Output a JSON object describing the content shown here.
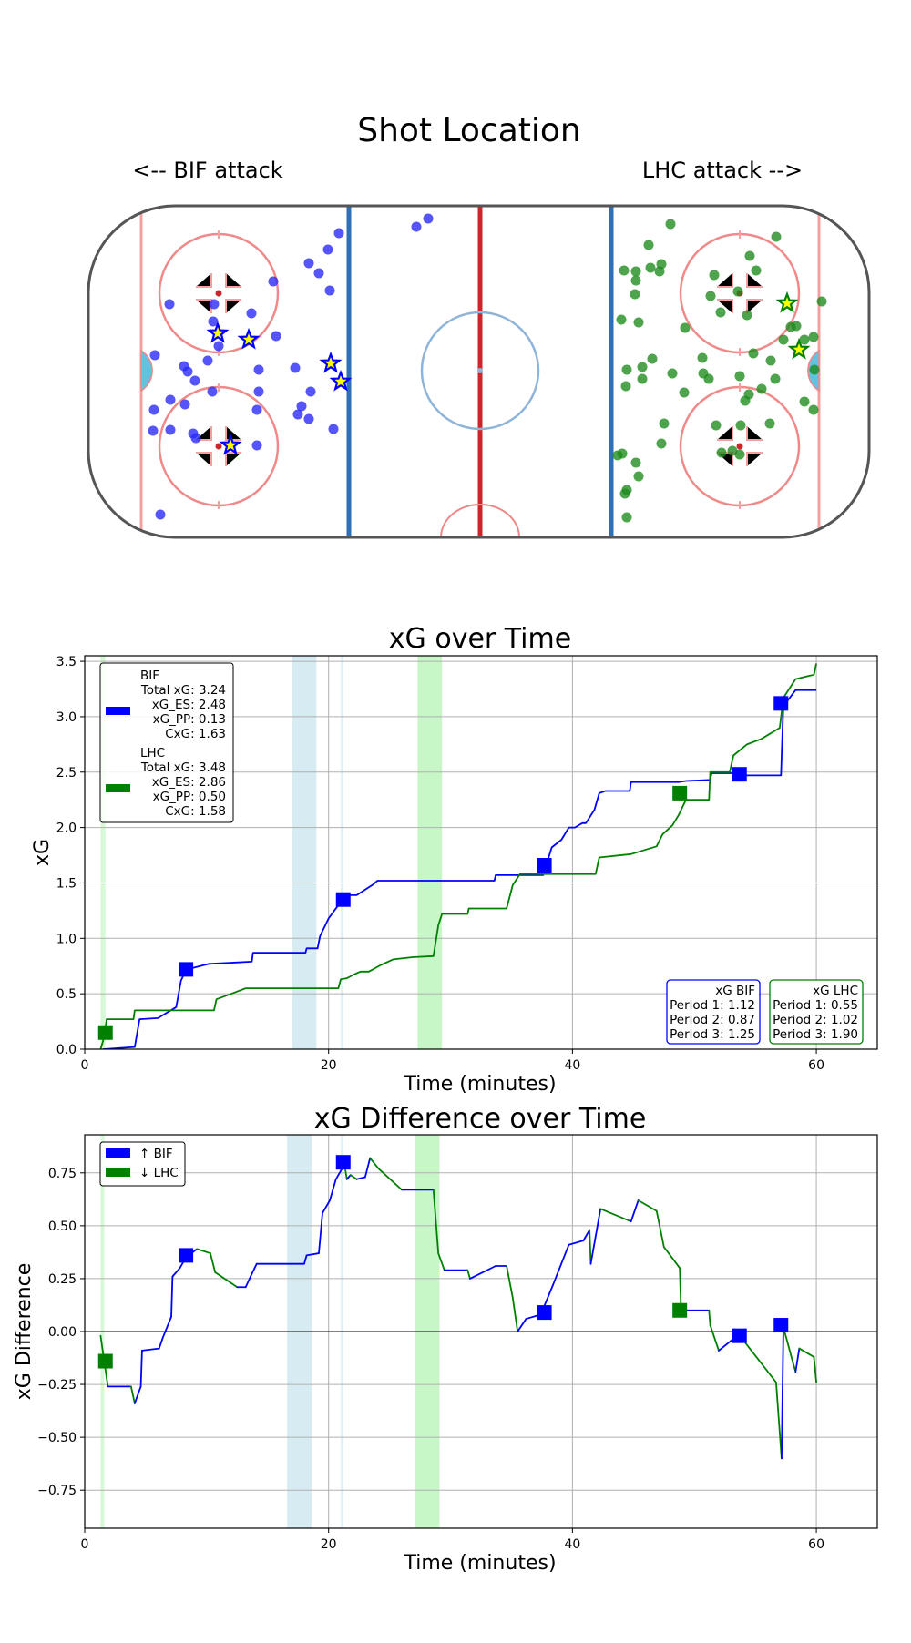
{
  "rink": {
    "title": "Shot Location",
    "left_label": "<-- BIF attack",
    "right_label": "LHC attack -->",
    "bif_color": "#0000ff",
    "lhc_color": "#008000",
    "goal_marker_fill": "#ffff00"
  },
  "chart_data": [
    {
      "type": "line",
      "title": "xG over Time",
      "xlabel": "Time (minutes)",
      "ylabel": "xG",
      "xlim": [
        0,
        65
      ],
      "ylim": [
        0,
        3.55
      ],
      "xticks": [
        0,
        20,
        40,
        60
      ],
      "yticks": [
        0.0,
        0.5,
        1.0,
        1.5,
        2.0,
        2.5,
        3.0,
        3.5
      ],
      "ytick_labels": [
        "0.0",
        "0.5",
        "1.0",
        "1.5",
        "2.0",
        "2.5",
        "3.0",
        "3.5"
      ],
      "grid": true,
      "series": [
        {
          "name": "BIF",
          "color": "#0000ff",
          "x": [
            1.5,
            4.1,
            4.5,
            6.0,
            7.5,
            7.9,
            8.2,
            8.4,
            10.2,
            13.7,
            13.8,
            18.1,
            18.2,
            19.1,
            19.3,
            20.0,
            20.8,
            21.2,
            22.3,
            23.7,
            24.0,
            33.6,
            33.7,
            37.6,
            38.3,
            39.1,
            39.7,
            40.2,
            40.8,
            41.1,
            41.8,
            42.2,
            42.7,
            44.7,
            44.8,
            48.7,
            49.3,
            51.3,
            51.4,
            53.7,
            53.9,
            57.1,
            57.3,
            57.6,
            58.3,
            60.0
          ],
          "y": [
            0.0,
            0.02,
            0.27,
            0.28,
            0.38,
            0.62,
            0.69,
            0.72,
            0.77,
            0.79,
            0.87,
            0.87,
            0.91,
            0.91,
            1.02,
            1.18,
            1.3,
            1.39,
            1.39,
            1.49,
            1.52,
            1.52,
            1.57,
            1.57,
            1.82,
            1.89,
            2.0,
            2.0,
            2.04,
            2.04,
            2.16,
            2.31,
            2.33,
            2.33,
            2.41,
            2.41,
            2.42,
            2.43,
            2.49,
            2.49,
            2.47,
            2.47,
            3.11,
            3.14,
            3.24,
            3.24
          ]
        },
        {
          "name": "LHC",
          "color": "#008000",
          "x": [
            1.3,
            1.6,
            1.8,
            4.0,
            4.1,
            10.6,
            10.8,
            12.5,
            13.2,
            20.8,
            21.0,
            21.5,
            22.0,
            22.6,
            23.3,
            24.3,
            25.3,
            26.9,
            28.6,
            29.0,
            29.3,
            31.4,
            31.5,
            34.6,
            35.1,
            35.7,
            41.9,
            42.2,
            44.8,
            46.9,
            47.4,
            48.2,
            48.7,
            49.3,
            51.2,
            51.3,
            52.9,
            53.2,
            54.3,
            55.5,
            57.0,
            57.3,
            58.3,
            59.8,
            60.0
          ],
          "y": [
            0.0,
            0.11,
            0.27,
            0.27,
            0.35,
            0.35,
            0.45,
            0.52,
            0.55,
            0.55,
            0.63,
            0.64,
            0.67,
            0.7,
            0.7,
            0.76,
            0.81,
            0.83,
            0.84,
            1.12,
            1.22,
            1.22,
            1.27,
            1.27,
            1.48,
            1.58,
            1.58,
            1.73,
            1.76,
            1.83,
            1.94,
            2.02,
            2.11,
            2.25,
            2.25,
            2.5,
            2.5,
            2.65,
            2.75,
            2.8,
            2.9,
            3.17,
            3.34,
            3.38,
            3.48
          ]
        }
      ],
      "goal_markers": [
        {
          "team": "LHC",
          "x": 1.7,
          "y": 0.15
        },
        {
          "team": "BIF",
          "x": 8.3,
          "y": 0.72
        },
        {
          "team": "BIF",
          "x": 21.2,
          "y": 1.35
        },
        {
          "team": "BIF",
          "x": 37.7,
          "y": 1.66
        },
        {
          "team": "LHC",
          "x": 48.8,
          "y": 2.31
        },
        {
          "team": "BIF",
          "x": 53.7,
          "y": 2.48
        },
        {
          "team": "BIF",
          "x": 57.1,
          "y": 3.12
        }
      ],
      "penalty_bands": [
        {
          "team": "LHC",
          "x0": 1.3,
          "x1": 1.7
        },
        {
          "team": "BIF",
          "x0": 17.0,
          "x1": 19.0
        },
        {
          "team": "BIF",
          "x0": 21.0,
          "x1": 21.2
        },
        {
          "team": "LHC",
          "x0": 27.3,
          "x1": 29.3
        }
      ],
      "legend": {
        "position": "upper-left",
        "entries": [
          {
            "team": "BIF",
            "color": "#0000ff",
            "lines": [
              "BIF",
              "Total xG: 3.24",
              "xG_ES: 2.48",
              "xG_PP: 0.13",
              "CxG: 1.63"
            ]
          },
          {
            "team": "LHC",
            "color": "#008000",
            "lines": [
              "LHC",
              "Total xG: 3.48",
              "xG_ES: 2.86",
              "xG_PP: 0.50",
              "CxG: 1.58"
            ]
          }
        ]
      },
      "period_boxes": [
        {
          "team": "BIF",
          "color": "#0000ff",
          "lines": [
            "xG BIF",
            "Period 1: 1.12",
            "Period 2: 0.87",
            "Period 3: 1.25"
          ]
        },
        {
          "team": "LHC",
          "color": "#008000",
          "lines": [
            "xG LHC",
            "Period 1: 0.55",
            "Period 2: 1.02",
            "Period 3: 1.90"
          ]
        }
      ]
    },
    {
      "type": "line",
      "title": "xG Difference over Time",
      "xlabel": "Time (minutes)",
      "ylabel": "xG Difference",
      "xlim": [
        0,
        65
      ],
      "ylim": [
        -0.93,
        0.93
      ],
      "xticks": [
        0,
        20,
        40,
        60
      ],
      "yticks": [
        -0.75,
        -0.5,
        -0.25,
        0.0,
        0.25,
        0.5,
        0.75
      ],
      "ytick_labels": [
        "−0.75",
        "−0.50",
        "−0.25",
        "0.00",
        "0.25",
        "0.50",
        "0.75"
      ],
      "grid": true,
      "zero_line": true,
      "positive_color": "#0000ff",
      "negative_color": "#008000",
      "series": [
        {
          "name": "xG difference",
          "x": [
            1.3,
            1.5,
            1.9,
            2.5,
            3.5,
            3.8,
            4.1,
            4.6,
            4.7,
            6.1,
            6.4,
            7.1,
            7.2,
            7.8,
            8.3,
            9.2,
            10.3,
            10.7,
            12.5,
            13.2,
            13.6,
            14.1,
            18.0,
            18.2,
            19.2,
            19.5,
            20.1,
            20.6,
            21.3,
            21.5,
            21.8,
            22.3,
            23.0,
            23.4,
            24.1,
            26.0,
            27.3,
            28.6,
            29.0,
            29.5,
            31.4,
            31.6,
            33.7,
            34.6,
            35.1,
            35.5,
            36.2,
            37.4,
            38.4,
            39.7,
            40.9,
            41.4,
            41.5,
            42.3,
            44.8,
            45.4,
            46.9,
            47.5,
            48.8,
            48.9,
            51.2,
            51.3,
            52.0,
            53.3,
            53.8,
            54.0,
            56.7,
            57.0,
            57.15,
            57.3,
            58.1,
            58.3,
            58.6,
            59.8,
            60.0
          ],
          "y": [
            -0.02,
            -0.1,
            -0.26,
            -0.26,
            -0.26,
            -0.26,
            -0.34,
            -0.26,
            -0.09,
            -0.08,
            -0.03,
            0.07,
            0.26,
            0.3,
            0.35,
            0.39,
            0.37,
            0.28,
            0.21,
            0.21,
            0.26,
            0.32,
            0.32,
            0.36,
            0.37,
            0.56,
            0.62,
            0.72,
            0.79,
            0.72,
            0.74,
            0.72,
            0.73,
            0.82,
            0.77,
            0.67,
            0.67,
            0.67,
            0.37,
            0.29,
            0.29,
            0.25,
            0.31,
            0.31,
            0.16,
            0.0,
            0.06,
            0.08,
            0.22,
            0.41,
            0.43,
            0.48,
            0.32,
            0.58,
            0.52,
            0.62,
            0.57,
            0.4,
            0.3,
            0.1,
            0.1,
            0.03,
            -0.09,
            -0.03,
            -0.02,
            -0.04,
            -0.24,
            -0.48,
            -0.6,
            0.02,
            -0.15,
            -0.19,
            -0.08,
            -0.12,
            -0.24
          ]
        }
      ],
      "goal_markers": [
        {
          "team": "LHC",
          "x": 1.7,
          "y": -0.14
        },
        {
          "team": "BIF",
          "x": 8.3,
          "y": 0.36
        },
        {
          "team": "BIF",
          "x": 21.2,
          "y": 0.8
        },
        {
          "team": "BIF",
          "x": 37.7,
          "y": 0.09
        },
        {
          "team": "LHC",
          "x": 48.8,
          "y": 0.1
        },
        {
          "team": "BIF",
          "x": 53.7,
          "y": -0.02
        },
        {
          "team": "BIF",
          "x": 57.1,
          "y": 0.03
        }
      ],
      "penalty_bands": [
        {
          "team": "LHC",
          "x0": 1.3,
          "x1": 1.6
        },
        {
          "team": "BIF",
          "x0": 16.6,
          "x1": 18.6
        },
        {
          "team": "BIF",
          "x0": 21.0,
          "x1": 21.2
        },
        {
          "team": "LHC",
          "x0": 27.1,
          "x1": 29.1
        }
      ],
      "legend": {
        "position": "upper-left",
        "entries": [
          {
            "team": "BIF",
            "color": "#0000ff",
            "lines": [
              "↑ BIF"
            ]
          },
          {
            "team": "LHC",
            "color": "#008000",
            "lines": [
              "↓ LHC"
            ]
          }
        ]
      }
    }
  ]
}
